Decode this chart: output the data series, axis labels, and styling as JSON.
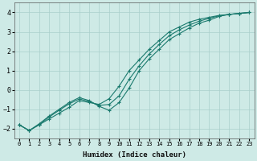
{
  "xlabel": "Humidex (Indice chaleur)",
  "ylabel": "",
  "background_color": "#ceeae6",
  "grid_color": "#aacfcb",
  "line_color": "#1a7a6e",
  "xlim": [
    -0.5,
    23.5
  ],
  "ylim": [
    -2.5,
    4.5
  ],
  "xticks": [
    0,
    1,
    2,
    3,
    4,
    5,
    6,
    7,
    8,
    9,
    10,
    11,
    12,
    13,
    14,
    15,
    16,
    17,
    18,
    19,
    20,
    21,
    22,
    23
  ],
  "yticks": [
    -2,
    -1,
    0,
    1,
    2,
    3,
    4
  ],
  "line1_x": [
    0,
    1,
    2,
    3,
    4,
    5,
    6,
    7,
    8,
    9,
    10,
    11,
    12,
    13,
    14,
    15,
    16,
    17,
    18,
    19,
    20,
    21,
    22,
    23
  ],
  "line1_y": [
    -1.8,
    -2.1,
    -1.8,
    -1.5,
    -1.2,
    -0.9,
    -0.55,
    -0.65,
    -0.75,
    -0.45,
    0.2,
    1.0,
    1.55,
    2.1,
    2.55,
    3.0,
    3.25,
    3.5,
    3.65,
    3.75,
    3.85,
    3.9,
    3.95,
    4.0
  ],
  "line2_x": [
    0,
    1,
    2,
    3,
    4,
    5,
    6,
    7,
    8,
    9,
    10,
    11,
    12,
    13,
    14,
    15,
    16,
    17,
    18,
    19,
    20,
    21,
    22,
    23
  ],
  "line2_y": [
    -1.8,
    -2.1,
    -1.75,
    -1.35,
    -1.0,
    -0.65,
    -0.4,
    -0.55,
    -0.85,
    -1.05,
    -0.65,
    0.1,
    1.0,
    1.6,
    2.1,
    2.6,
    2.9,
    3.2,
    3.45,
    3.6,
    3.8,
    3.9,
    3.95,
    4.0
  ],
  "line3_x": [
    0,
    1,
    2,
    3,
    4,
    5,
    6,
    7,
    8,
    9,
    10,
    11,
    12,
    13,
    14,
    15,
    16,
    17,
    18,
    19,
    20,
    21,
    22,
    23
  ],
  "line3_y": [
    -1.8,
    -2.1,
    -1.8,
    -1.4,
    -1.05,
    -0.72,
    -0.47,
    -0.6,
    -0.8,
    -0.75,
    -0.3,
    0.55,
    1.25,
    1.85,
    2.35,
    2.8,
    3.1,
    3.35,
    3.55,
    3.7,
    3.83,
    3.9,
    3.95,
    4.0
  ]
}
